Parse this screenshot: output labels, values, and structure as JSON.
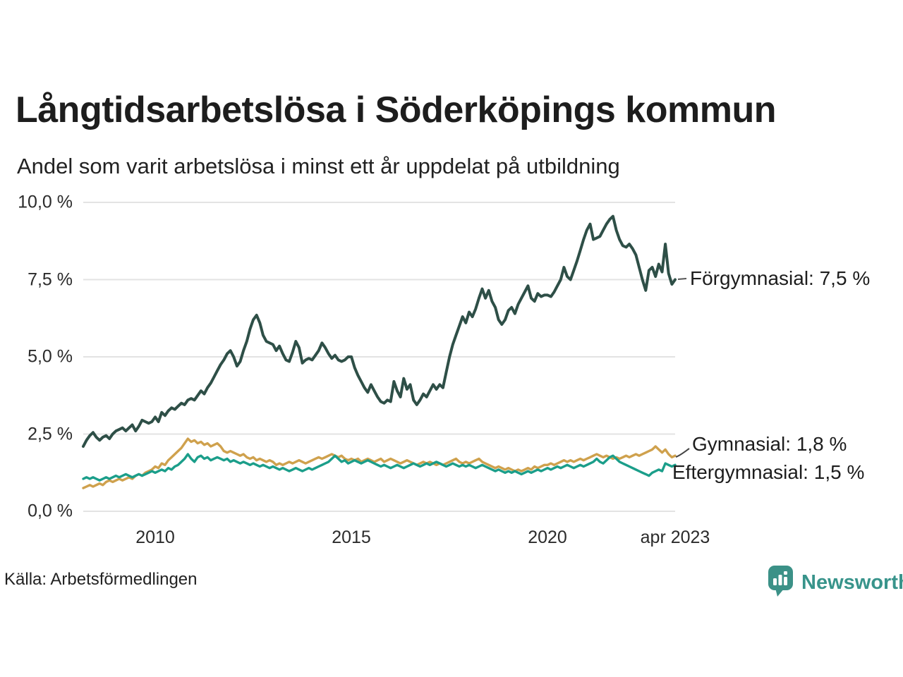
{
  "title": "Långtidsarbetslösa i Söderköpings kommun",
  "subtitle": "Andel som varit arbetslösa i minst ett år uppdelat på utbildning",
  "source": "Källa: Arbetsförmedlingen",
  "branding": {
    "name": "Newsworthy",
    "color": "#38948b",
    "icon": "bar-chart-badge-icon"
  },
  "chart_data": {
    "type": "line",
    "x_start": "2008-03",
    "x_end": "2023-04",
    "x_interval": "monthly",
    "ylim": [
      0,
      10
    ],
    "grid": true,
    "legend_position": "end-of-line-annotations",
    "yticks": [
      {
        "value": 10.0,
        "label": "10,0 %"
      },
      {
        "value": 7.5,
        "label": "7,5 %"
      },
      {
        "value": 5.0,
        "label": "5,0 %"
      },
      {
        "value": 2.5,
        "label": "2,5 %"
      },
      {
        "value": 0.0,
        "label": "0,0 %"
      }
    ],
    "xticks": [
      {
        "index": 22,
        "label": "2010"
      },
      {
        "index": 82,
        "label": "2015"
      },
      {
        "index": 142,
        "label": "2020"
      },
      {
        "index": 181,
        "label": "apr 2023"
      }
    ],
    "series": [
      {
        "name": "Förgymnasial",
        "color": "#2e4f47",
        "final_value": 7.5,
        "final_label": "Förgymnasial: 7,5 %",
        "values": [
          2.1,
          2.3,
          2.45,
          2.55,
          2.4,
          2.3,
          2.4,
          2.45,
          2.35,
          2.5,
          2.6,
          2.65,
          2.7,
          2.6,
          2.7,
          2.8,
          2.6,
          2.75,
          2.95,
          2.9,
          2.85,
          2.9,
          3.05,
          2.9,
          3.2,
          3.1,
          3.25,
          3.35,
          3.3,
          3.4,
          3.5,
          3.45,
          3.6,
          3.65,
          3.6,
          3.75,
          3.9,
          3.8,
          4.0,
          4.15,
          4.35,
          4.55,
          4.75,
          4.9,
          5.1,
          5.2,
          5.0,
          4.7,
          4.85,
          5.2,
          5.5,
          5.9,
          6.2,
          6.35,
          6.1,
          5.7,
          5.5,
          5.45,
          5.4,
          5.2,
          5.35,
          5.1,
          4.9,
          4.85,
          5.15,
          5.5,
          5.3,
          4.8,
          4.9,
          4.95,
          4.9,
          5.05,
          5.2,
          5.45,
          5.3,
          5.1,
          4.95,
          5.05,
          4.9,
          4.85,
          4.9,
          5.0,
          5.0,
          4.65,
          4.4,
          4.2,
          4.0,
          3.85,
          4.1,
          3.9,
          3.7,
          3.55,
          3.5,
          3.6,
          3.55,
          4.2,
          3.9,
          3.7,
          4.3,
          3.95,
          4.1,
          3.6,
          3.45,
          3.6,
          3.8,
          3.7,
          3.9,
          4.1,
          3.95,
          4.1,
          4.0,
          4.5,
          5.0,
          5.4,
          5.7,
          6.0,
          6.3,
          6.1,
          6.45,
          6.3,
          6.55,
          6.9,
          7.2,
          6.9,
          7.15,
          6.8,
          6.6,
          6.2,
          6.05,
          6.2,
          6.5,
          6.6,
          6.4,
          6.7,
          6.9,
          7.1,
          7.3,
          6.9,
          6.8,
          7.05,
          6.95,
          7.0,
          7.0,
          6.95,
          7.1,
          7.3,
          7.5,
          7.9,
          7.6,
          7.5,
          7.8,
          8.1,
          8.45,
          8.8,
          9.1,
          9.3,
          8.8,
          8.85,
          8.9,
          9.1,
          9.3,
          9.45,
          9.55,
          9.1,
          8.8,
          8.6,
          8.55,
          8.65,
          8.5,
          8.3,
          7.9,
          7.5,
          7.15,
          7.8,
          7.9,
          7.6,
          8.0,
          7.75,
          8.65,
          7.7,
          7.35,
          7.5
        ]
      },
      {
        "name": "Gymnasial",
        "color": "#cfa14d",
        "final_value": 1.8,
        "final_label": "Gymnasial: 1,8 %",
        "values": [
          0.75,
          0.8,
          0.85,
          0.8,
          0.85,
          0.9,
          0.85,
          0.95,
          1.0,
          0.95,
          1.0,
          1.05,
          1.0,
          1.05,
          1.1,
          1.05,
          1.15,
          1.2,
          1.15,
          1.25,
          1.3,
          1.35,
          1.45,
          1.4,
          1.55,
          1.5,
          1.65,
          1.75,
          1.85,
          1.95,
          2.05,
          2.2,
          2.35,
          2.25,
          2.3,
          2.2,
          2.25,
          2.15,
          2.2,
          2.1,
          2.15,
          2.2,
          2.1,
          1.95,
          1.9,
          1.95,
          1.9,
          1.85,
          1.8,
          1.85,
          1.75,
          1.7,
          1.75,
          1.65,
          1.7,
          1.65,
          1.6,
          1.65,
          1.6,
          1.5,
          1.55,
          1.5,
          1.55,
          1.6,
          1.55,
          1.6,
          1.65,
          1.6,
          1.55,
          1.6,
          1.65,
          1.7,
          1.75,
          1.7,
          1.75,
          1.8,
          1.85,
          1.8,
          1.75,
          1.8,
          1.7,
          1.65,
          1.7,
          1.65,
          1.7,
          1.6,
          1.65,
          1.7,
          1.65,
          1.6,
          1.65,
          1.7,
          1.6,
          1.65,
          1.7,
          1.65,
          1.6,
          1.55,
          1.6,
          1.65,
          1.6,
          1.55,
          1.5,
          1.55,
          1.6,
          1.55,
          1.6,
          1.55,
          1.5,
          1.55,
          1.5,
          1.55,
          1.6,
          1.65,
          1.7,
          1.6,
          1.55,
          1.6,
          1.55,
          1.6,
          1.65,
          1.7,
          1.6,
          1.55,
          1.5,
          1.45,
          1.4,
          1.45,
          1.4,
          1.35,
          1.4,
          1.35,
          1.3,
          1.35,
          1.3,
          1.35,
          1.4,
          1.35,
          1.45,
          1.4,
          1.45,
          1.5,
          1.5,
          1.55,
          1.5,
          1.55,
          1.6,
          1.65,
          1.6,
          1.65,
          1.6,
          1.65,
          1.7,
          1.65,
          1.7,
          1.75,
          1.8,
          1.85,
          1.8,
          1.75,
          1.8,
          1.75,
          1.7,
          1.75,
          1.7,
          1.75,
          1.8,
          1.75,
          1.8,
          1.85,
          1.8,
          1.85,
          1.9,
          1.95,
          2.0,
          2.1,
          2.0,
          1.9,
          2.0,
          1.85,
          1.75,
          1.8
        ]
      },
      {
        "name": "Eftergymnasial",
        "color": "#1b9e8a",
        "final_value": 1.5,
        "final_label": "Eftergymnasial: 1,5 %",
        "values": [
          1.05,
          1.1,
          1.05,
          1.1,
          1.05,
          1.0,
          1.05,
          1.1,
          1.05,
          1.1,
          1.15,
          1.1,
          1.15,
          1.2,
          1.15,
          1.1,
          1.15,
          1.2,
          1.15,
          1.2,
          1.25,
          1.3,
          1.25,
          1.3,
          1.35,
          1.3,
          1.4,
          1.35,
          1.45,
          1.5,
          1.6,
          1.7,
          1.85,
          1.7,
          1.6,
          1.75,
          1.8,
          1.7,
          1.75,
          1.65,
          1.7,
          1.75,
          1.7,
          1.65,
          1.7,
          1.6,
          1.65,
          1.6,
          1.55,
          1.6,
          1.55,
          1.5,
          1.55,
          1.5,
          1.45,
          1.5,
          1.45,
          1.4,
          1.45,
          1.4,
          1.35,
          1.4,
          1.35,
          1.3,
          1.35,
          1.4,
          1.35,
          1.3,
          1.35,
          1.4,
          1.35,
          1.4,
          1.45,
          1.5,
          1.55,
          1.6,
          1.7,
          1.8,
          1.7,
          1.6,
          1.65,
          1.55,
          1.6,
          1.65,
          1.6,
          1.55,
          1.6,
          1.65,
          1.6,
          1.55,
          1.5,
          1.45,
          1.5,
          1.45,
          1.4,
          1.45,
          1.5,
          1.45,
          1.4,
          1.45,
          1.5,
          1.55,
          1.5,
          1.45,
          1.5,
          1.55,
          1.5,
          1.55,
          1.6,
          1.55,
          1.5,
          1.45,
          1.5,
          1.55,
          1.5,
          1.45,
          1.5,
          1.45,
          1.5,
          1.45,
          1.4,
          1.45,
          1.5,
          1.45,
          1.4,
          1.35,
          1.3,
          1.35,
          1.3,
          1.25,
          1.3,
          1.25,
          1.3,
          1.25,
          1.2,
          1.25,
          1.3,
          1.25,
          1.3,
          1.35,
          1.3,
          1.35,
          1.4,
          1.35,
          1.4,
          1.45,
          1.4,
          1.45,
          1.5,
          1.45,
          1.4,
          1.45,
          1.5,
          1.45,
          1.5,
          1.55,
          1.6,
          1.7,
          1.6,
          1.55,
          1.65,
          1.75,
          1.8,
          1.7,
          1.6,
          1.55,
          1.5,
          1.45,
          1.4,
          1.35,
          1.3,
          1.25,
          1.2,
          1.15,
          1.25,
          1.3,
          1.35,
          1.3,
          1.55,
          1.5,
          1.45,
          1.5
        ]
      }
    ]
  }
}
